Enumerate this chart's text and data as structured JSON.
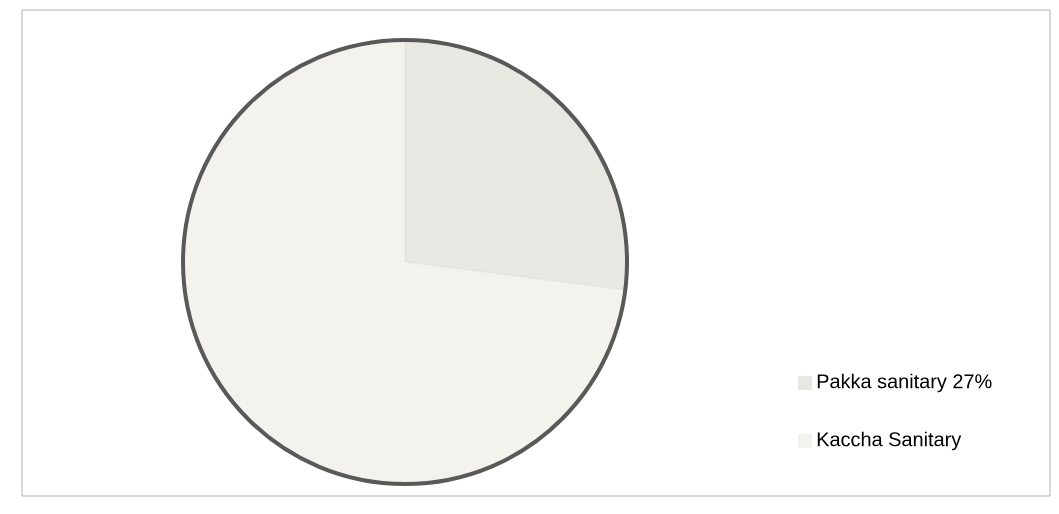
{
  "chart_data": {
    "type": "pie",
    "categories": [
      "Pakka sanitary 27%",
      "Kaccha Sanitary"
    ],
    "values": [
      27,
      73
    ],
    "colors": [
      "#e9e7e2",
      "#f4f2ed"
    ],
    "legend": "right"
  }
}
